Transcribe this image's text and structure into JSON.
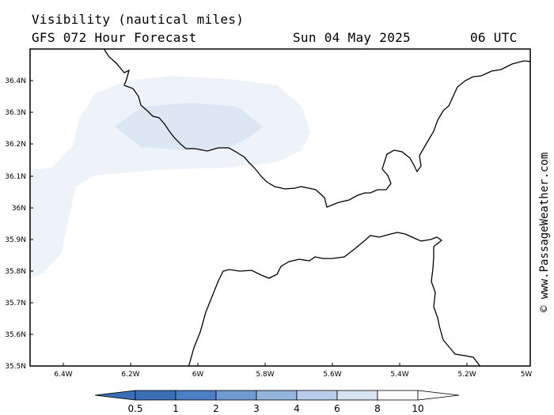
{
  "header": {
    "title": "Visibility (nautical miles)",
    "model": "GFS 072 Hour Forecast",
    "date": "Sun 04 May 2025",
    "time": "06 UTC"
  },
  "watermark": "© www.PassageWeather.com",
  "axes": {
    "lat_labels": [
      "36.4N",
      "36.3N",
      "36.2N",
      "36.1N",
      "36N",
      "35.9N",
      "35.8N",
      "35.7N",
      "35.6N",
      "35.5N"
    ],
    "lon_labels": [
      "6.4W",
      "6.2W",
      "6W",
      "5.8W",
      "5.6W",
      "5.4W",
      "5.2W",
      "5W"
    ]
  },
  "legend": {
    "labels": [
      "0.5",
      "1",
      "2",
      "3",
      "4",
      "6",
      "8",
      "10"
    ],
    "colors": [
      "#3a6fb5",
      "#4a7fc4",
      "#6f9bd2",
      "#94b4de",
      "#b7cde9",
      "#d7e3f3",
      "#eef3fa",
      "#ffffff"
    ]
  },
  "colors": {
    "fog_light": "#eef3fa",
    "fog_medium": "#dde7f4"
  }
}
